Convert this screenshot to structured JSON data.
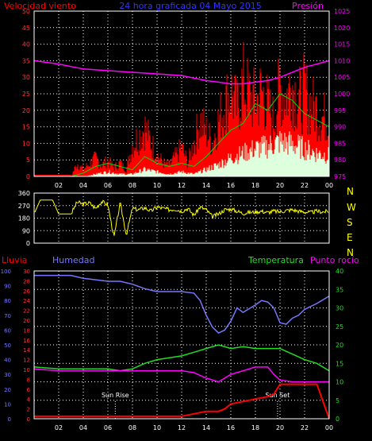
{
  "page": {
    "title": "24 hora graficada 04 Mayo 2015",
    "background": "#000000"
  },
  "colors": {
    "wind": "#ff0000",
    "gust": "#ff0000",
    "avg": "#00dd00",
    "light": "#ddffdd",
    "pressure": "#ff00ff",
    "direction": "#ffff00",
    "rain": "#ff0000",
    "humidity": "#7777ff",
    "temperature": "#22dd22",
    "dewpoint": "#ff00ff",
    "title": "#3333ff",
    "grid": "#ffffff",
    "frame": "#ffffff",
    "cardinal": "#ffff00",
    "left_axis": "#ff3333",
    "right_axis": "#ff00ff",
    "hum_axis": "#7777ff",
    "temp_axis": "#22dd22",
    "tick": "#ffffff"
  },
  "chart_data": [
    {
      "id": "wind",
      "type": "line",
      "title": "24 hora graficada 04 Mayo 2015",
      "ylabel": "Velocidad viento",
      "y2label": "Presión",
      "ylim": [
        0,
        50
      ],
      "yticks": [
        0,
        5,
        10,
        15,
        20,
        25,
        30,
        35,
        40,
        45,
        50
      ],
      "y2lim": [
        975,
        1025
      ],
      "y2ticks": [
        975,
        980,
        985,
        990,
        995,
        1000,
        1005,
        1010,
        1015,
        1020,
        1025
      ],
      "xticks": [
        "02",
        "04",
        "06",
        "08",
        "10",
        "12",
        "14",
        "16",
        "18",
        "20",
        "22",
        "00"
      ],
      "grid": true,
      "series": [
        {
          "key": "gust",
          "axis": "left",
          "x": [
            0,
            3,
            3.5,
            4,
            4.5,
            5,
            5.5,
            6,
            6.5,
            7,
            7.5,
            8,
            8.5,
            9,
            9.5,
            10,
            10.5,
            11,
            11.5,
            12,
            12.5,
            13,
            13.5,
            14,
            14.5,
            15,
            15.5,
            16,
            16.5,
            17,
            17.5,
            18,
            18.5,
            19,
            19.5,
            20,
            20.5,
            21,
            21.5,
            22,
            22.5,
            23,
            23.5,
            24
          ],
          "values": [
            0,
            0,
            6,
            3,
            6,
            8,
            5,
            7,
            4,
            6,
            3,
            14,
            18,
            22,
            15,
            10,
            6,
            5,
            9,
            13,
            6,
            15,
            25,
            20,
            15,
            25,
            32,
            38,
            30,
            42,
            36,
            33,
            38,
            32,
            25,
            40,
            36,
            42,
            33,
            38,
            32,
            30,
            26,
            28
          ]
        },
        {
          "key": "avg",
          "axis": "left",
          "x": [
            0,
            3,
            4,
            5,
            6,
            7,
            8,
            9,
            10,
            11,
            12,
            13,
            14,
            15,
            16,
            17,
            18,
            19,
            20,
            21,
            22,
            23,
            24
          ],
          "values": [
            0,
            0,
            1,
            3,
            4,
            3,
            2,
            6,
            4,
            3,
            4,
            3,
            6,
            10,
            14,
            16,
            22,
            20,
            25,
            23,
            19,
            17,
            15
          ]
        },
        {
          "key": "light",
          "axis": "left",
          "x": [
            0,
            3,
            4,
            5,
            6,
            7,
            8,
            9,
            10,
            11,
            12,
            13,
            14,
            15,
            16,
            17,
            18,
            19,
            20,
            21,
            22,
            23,
            24
          ],
          "values": [
            0,
            0,
            0,
            1,
            2,
            1,
            1,
            3,
            2,
            1,
            2,
            1,
            3,
            5,
            8,
            10,
            12,
            13,
            15,
            14,
            12,
            10,
            9
          ]
        },
        {
          "key": "pressure",
          "axis": "right",
          "x": [
            0,
            2,
            4,
            6,
            8,
            10,
            12,
            14,
            15,
            16,
            17,
            18,
            19,
            20,
            21,
            22,
            23,
            24
          ],
          "values": [
            1010,
            1009,
            1007.5,
            1007,
            1006.5,
            1006,
            1005.5,
            1004,
            1003.5,
            1003,
            1003,
            1003.5,
            1004,
            1005,
            1006.5,
            1008,
            1009,
            1010
          ]
        }
      ]
    },
    {
      "id": "direction",
      "type": "line",
      "ylim": [
        0,
        360
      ],
      "yticks": [
        0,
        90,
        180,
        270,
        360
      ],
      "cardinal": [
        "N",
        "W",
        "S",
        "E",
        "N"
      ],
      "grid": true,
      "series": [
        {
          "key": "direction",
          "x": [
            0,
            0.5,
            1,
            1.5,
            2,
            2.5,
            3,
            3.5,
            4,
            4.5,
            5,
            5.5,
            6,
            6.5,
            7,
            7.5,
            8,
            8.5,
            9,
            9.5,
            10,
            10.5,
            11,
            11.5,
            12,
            12.5,
            13,
            13.5,
            14,
            14.5,
            15,
            15.5,
            16,
            16.5,
            17,
            17.5,
            18,
            18.5,
            19,
            19.5,
            20,
            20.5,
            21,
            21.5,
            22,
            22.5,
            23,
            23.5,
            24
          ],
          "values": [
            210,
            310,
            310,
            310,
            210,
            210,
            210,
            295,
            280,
            290,
            250,
            300,
            275,
            40,
            290,
            60,
            250,
            240,
            255,
            230,
            260,
            250,
            240,
            245,
            230,
            250,
            200,
            260,
            240,
            190,
            210,
            240,
            245,
            230,
            215,
            220,
            225,
            230,
            220,
            230,
            225,
            235,
            240,
            230,
            225,
            220,
            230,
            225,
            230
          ]
        }
      ]
    },
    {
      "id": "temp_hum",
      "type": "line",
      "ylabel": "Lluvia",
      "y2label": "Humedad",
      "y3label": "Temperatura",
      "y4label": "Punto rocío",
      "rain_lim": [
        0,
        30
      ],
      "rain_ticks": [
        0,
        2,
        4,
        6,
        8,
        10,
        12,
        14,
        16,
        18,
        20,
        22,
        24,
        26,
        28,
        30
      ],
      "hum_lim": [
        0,
        100
      ],
      "hum_ticks": [
        0,
        10,
        20,
        30,
        40,
        50,
        60,
        70,
        80,
        90,
        100
      ],
      "temp_lim": [
        0,
        40
      ],
      "temp_ticks": [
        0,
        5,
        10,
        15,
        20,
        25,
        30,
        35,
        40
      ],
      "xticks": [
        "02",
        "04",
        "06",
        "08",
        "10",
        "12",
        "14",
        "16",
        "18",
        "20",
        "22",
        "00"
      ],
      "annotations": [
        {
          "label": "Sun Rise",
          "x": 6.6
        },
        {
          "label": "Sun Set",
          "x": 19.8
        }
      ],
      "grid": true,
      "series": [
        {
          "key": "humidity",
          "axis": "hum",
          "x": [
            0,
            3,
            4,
            6,
            7,
            8,
            9,
            10,
            11,
            12,
            13,
            13.5,
            14,
            14.5,
            15,
            15.5,
            16,
            16.5,
            17,
            18,
            18.5,
            19,
            19.5,
            20,
            20.5,
            21,
            21.5,
            22,
            23,
            24
          ],
          "values": [
            97,
            97,
            95,
            93,
            93,
            91,
            88,
            86,
            86,
            86,
            85,
            80,
            70,
            62,
            58,
            60,
            66,
            75,
            72,
            77,
            80,
            79,
            75,
            65,
            64,
            68,
            70,
            74,
            78,
            83
          ]
        },
        {
          "key": "temperature",
          "axis": "temp",
          "x": [
            0,
            2,
            4,
            6,
            7,
            8,
            9,
            10,
            11,
            12,
            13,
            14,
            15,
            16,
            17,
            18,
            19,
            20,
            21,
            22,
            23,
            24
          ],
          "values": [
            14,
            13.5,
            13.5,
            13.5,
            13,
            13.5,
            15,
            16,
            16.5,
            17,
            18,
            19,
            20,
            19,
            19.5,
            19,
            19,
            19,
            17.5,
            16,
            15,
            13
          ]
        },
        {
          "key": "dewpoint",
          "axis": "temp",
          "x": [
            0,
            2,
            4,
            6,
            8,
            10,
            12,
            13,
            14,
            15,
            16,
            17,
            18,
            19,
            19.5,
            20,
            21,
            22,
            23,
            24
          ],
          "values": [
            13.5,
            13,
            13,
            13,
            13,
            13,
            13,
            12.5,
            11,
            10,
            12,
            13,
            14,
            14,
            12,
            10.5,
            10,
            10,
            10,
            10
          ]
        },
        {
          "key": "rain",
          "axis": "rain",
          "x": [
            0,
            6.5,
            12,
            13,
            14,
            15,
            15.5,
            16,
            17,
            18,
            19,
            19.5,
            20,
            21,
            22,
            23,
            24
          ],
          "values": [
            0.5,
            0.5,
            0.5,
            1,
            1.5,
            1.5,
            2,
            3,
            3.5,
            4,
            4.5,
            5,
            7,
            7,
            7,
            7,
            0
          ]
        }
      ]
    }
  ]
}
